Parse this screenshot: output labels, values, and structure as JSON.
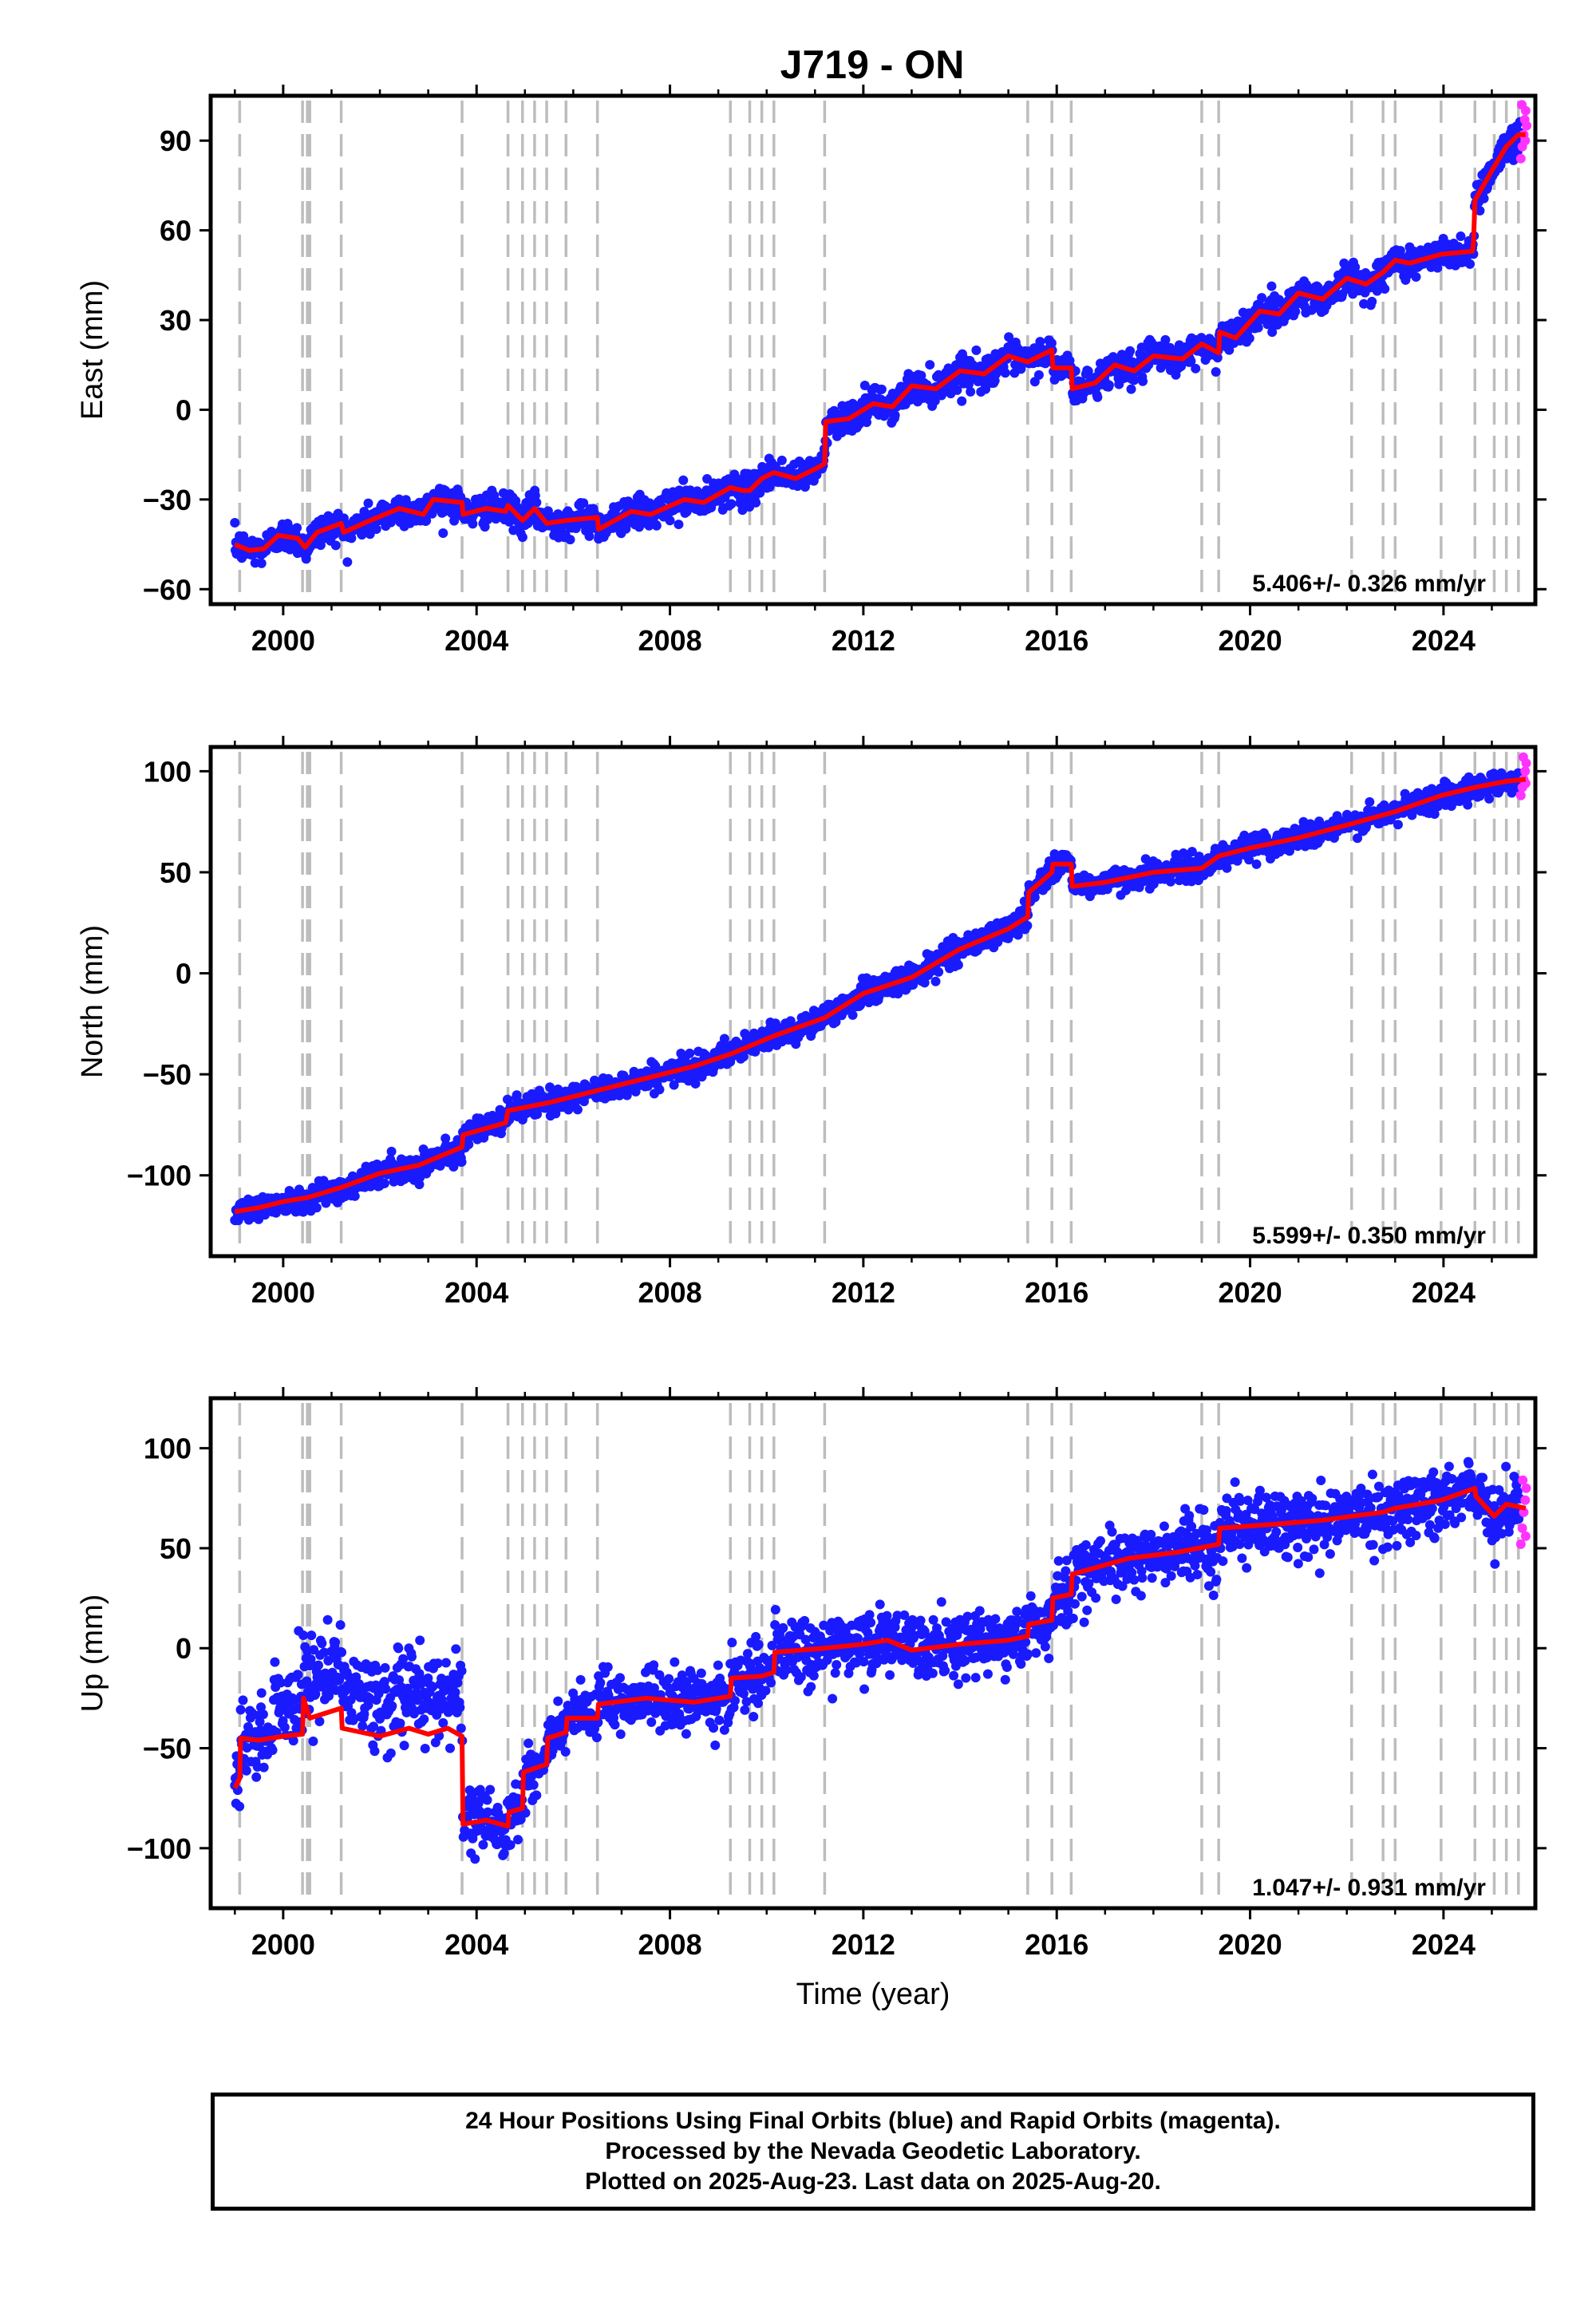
{
  "title": "J719 - ON",
  "caption": {
    "line1": "24 Hour Positions Using Final Orbits (blue) and Rapid Orbits (magenta).",
    "line2": "Processed by the Nevada Geodetic Laboratory.",
    "line3": "Plotted on 2025-Aug-23. Last data on 2025-Aug-20."
  },
  "colors": {
    "final_orbits": "#1a1aff",
    "rapid_orbits": "#ff33ff",
    "model": "#ff0000",
    "event_lines": "#bdbdbd"
  },
  "chart_data": [
    {
      "type": "scatter",
      "name": "east",
      "ylabel": "East (mm)",
      "xlabel": "",
      "xlim": [
        1998.5,
        2025.9
      ],
      "ylim": [
        -65,
        105
      ],
      "xticks": [
        2000,
        2004,
        2008,
        2012,
        2016,
        2020,
        2024
      ],
      "yticks": [
        -60,
        -30,
        0,
        30,
        60,
        90
      ],
      "rate": "5.406+/- 0.326 mm/yr",
      "event_lines": [
        1999.1,
        2000.4,
        2000.5,
        2000.55,
        2001.2,
        2003.7,
        2004.65,
        2004.95,
        2005.2,
        2005.45,
        2005.85,
        2006.5,
        2009.25,
        2009.65,
        2009.9,
        2010.15,
        2011.2,
        2015.4,
        2015.9,
        2016.3,
        2019.0,
        2019.35,
        2022.1,
        2022.75,
        2023.0,
        2023.95,
        2024.65,
        2025.05,
        2025.3,
        2025.55
      ],
      "model": [
        [
          1999.0,
          -45
        ],
        [
          1999.3,
          -47
        ],
        [
          1999.6,
          -46.5
        ],
        [
          1999.9,
          -42
        ],
        [
          2000.3,
          -43
        ],
        [
          2000.45,
          -46
        ],
        [
          2000.7,
          -41
        ],
        [
          2001.2,
          -38
        ],
        [
          2001.25,
          -41
        ],
        [
          2001.8,
          -37
        ],
        [
          2002.4,
          -33
        ],
        [
          2002.9,
          -35
        ],
        [
          2003.1,
          -30
        ],
        [
          2003.7,
          -31
        ],
        [
          2003.72,
          -35
        ],
        [
          2004.2,
          -33
        ],
        [
          2004.6,
          -34
        ],
        [
          2004.65,
          -32
        ],
        [
          2004.95,
          -37
        ],
        [
          2005.2,
          -33
        ],
        [
          2005.45,
          -38
        ],
        [
          2005.85,
          -37
        ],
        [
          2006.5,
          -36
        ],
        [
          2006.52,
          -40
        ],
        [
          2007.2,
          -34
        ],
        [
          2007.6,
          -35
        ],
        [
          2008.3,
          -30
        ],
        [
          2008.7,
          -31
        ],
        [
          2009.25,
          -26
        ],
        [
          2009.5,
          -27
        ],
        [
          2009.65,
          -27
        ],
        [
          2009.9,
          -23
        ],
        [
          2010.15,
          -21
        ],
        [
          2010.6,
          -23
        ],
        [
          2011.1,
          -19
        ],
        [
          2011.2,
          -18
        ],
        [
          2011.22,
          -4
        ],
        [
          2011.7,
          -3
        ],
        [
          2012.2,
          2
        ],
        [
          2012.6,
          1
        ],
        [
          2013.0,
          8
        ],
        [
          2013.5,
          7
        ],
        [
          2014.0,
          13
        ],
        [
          2014.5,
          12
        ],
        [
          2015.0,
          18
        ],
        [
          2015.4,
          16
        ],
        [
          2015.9,
          20
        ],
        [
          2015.92,
          14
        ],
        [
          2016.3,
          14
        ],
        [
          2016.32,
          7
        ],
        [
          2016.8,
          9
        ],
        [
          2017.2,
          15
        ],
        [
          2017.6,
          13
        ],
        [
          2018.0,
          18
        ],
        [
          2018.6,
          17
        ],
        [
          2019.0,
          22
        ],
        [
          2019.35,
          19
        ],
        [
          2019.37,
          26
        ],
        [
          2019.7,
          24
        ],
        [
          2020.2,
          33
        ],
        [
          2020.6,
          32
        ],
        [
          2021.0,
          39
        ],
        [
          2021.5,
          37
        ],
        [
          2022.0,
          44
        ],
        [
          2022.4,
          42
        ],
        [
          2022.75,
          46
        ],
        [
          2023.0,
          50
        ],
        [
          2023.3,
          49
        ],
        [
          2023.95,
          52
        ],
        [
          2024.6,
          53
        ],
        [
          2024.62,
          56
        ],
        [
          2024.65,
          70
        ],
        [
          2025.0,
          80
        ],
        [
          2025.3,
          88
        ],
        [
          2025.55,
          92
        ],
        [
          2025.7,
          92
        ]
      ],
      "scatter_sigma": 2.6,
      "rapid_points": [
        [
          2025.6,
          84
        ],
        [
          2025.63,
          88
        ],
        [
          2025.66,
          92
        ],
        [
          2025.68,
          97
        ],
        [
          2025.7,
          100
        ],
        [
          2025.72,
          95
        ],
        [
          2025.62,
          102
        ],
        [
          2025.69,
          90
        ]
      ]
    },
    {
      "type": "scatter",
      "name": "north",
      "ylabel": "North (mm)",
      "xlabel": "",
      "xlim": [
        1998.5,
        2025.9
      ],
      "ylim": [
        -140,
        112
      ],
      "xticks": [
        2000,
        2004,
        2008,
        2012,
        2016,
        2020,
        2024
      ],
      "yticks": [
        -100,
        -50,
        0,
        50,
        100
      ],
      "rate": "5.599+/- 0.350 mm/yr",
      "event_lines": [
        1999.1,
        2000.4,
        2000.5,
        2000.55,
        2001.2,
        2003.7,
        2004.65,
        2004.95,
        2005.2,
        2005.45,
        2005.85,
        2006.5,
        2009.25,
        2009.65,
        2009.9,
        2010.15,
        2011.2,
        2015.4,
        2015.9,
        2016.3,
        2019.0,
        2019.35,
        2022.1,
        2022.75,
        2023.0,
        2023.95,
        2024.65,
        2025.05,
        2025.3,
        2025.55
      ],
      "model": [
        [
          1999.0,
          -118
        ],
        [
          1999.5,
          -116
        ],
        [
          2000.0,
          -113
        ],
        [
          2000.5,
          -111
        ],
        [
          2001.2,
          -106
        ],
        [
          2002.0,
          -99
        ],
        [
          2002.8,
          -95
        ],
        [
          2003.7,
          -86
        ],
        [
          2003.72,
          -80
        ],
        [
          2004.6,
          -74
        ],
        [
          2004.65,
          -68
        ],
        [
          2005.5,
          -64
        ],
        [
          2006.5,
          -58
        ],
        [
          2007.5,
          -52
        ],
        [
          2008.5,
          -46
        ],
        [
          2009.25,
          -40
        ],
        [
          2010.15,
          -31
        ],
        [
          2011.2,
          -22
        ],
        [
          2012.0,
          -10
        ],
        [
          2013.0,
          -2
        ],
        [
          2014.0,
          12
        ],
        [
          2015.0,
          22
        ],
        [
          2015.4,
          28
        ],
        [
          2015.42,
          40
        ],
        [
          2015.9,
          50
        ],
        [
          2015.92,
          54
        ],
        [
          2016.3,
          54
        ],
        [
          2016.32,
          43
        ],
        [
          2017.0,
          45
        ],
        [
          2018.0,
          50
        ],
        [
          2019.0,
          52
        ],
        [
          2019.35,
          58
        ],
        [
          2020.0,
          62
        ],
        [
          2021.0,
          67
        ],
        [
          2022.1,
          74
        ],
        [
          2023.0,
          80
        ],
        [
          2023.95,
          88
        ],
        [
          2024.65,
          92
        ],
        [
          2025.3,
          95
        ],
        [
          2025.7,
          96
        ]
      ],
      "scatter_sigma": 3.0,
      "rapid_points": [
        [
          2025.6,
          88
        ],
        [
          2025.63,
          92
        ],
        [
          2025.66,
          96
        ],
        [
          2025.69,
          100
        ],
        [
          2025.71,
          104
        ],
        [
          2025.65,
          107
        ],
        [
          2025.7,
          94
        ]
      ]
    },
    {
      "type": "scatter",
      "name": "up",
      "ylabel": "Up (mm)",
      "xlabel": "Time (year)",
      "xlim": [
        1998.5,
        2025.9
      ],
      "ylim": [
        -130,
        125
      ],
      "xticks": [
        2000,
        2004,
        2008,
        2012,
        2016,
        2020,
        2024
      ],
      "yticks": [
        -100,
        -50,
        0,
        50,
        100
      ],
      "rate": "1.047+/- 0.931 mm/yr",
      "event_lines": [
        1999.1,
        2000.4,
        2000.5,
        2000.55,
        2001.2,
        2003.7,
        2004.65,
        2004.95,
        2005.2,
        2005.45,
        2005.85,
        2006.5,
        2009.25,
        2009.65,
        2009.9,
        2010.15,
        2011.2,
        2015.4,
        2015.9,
        2016.3,
        2019.0,
        2019.35,
        2022.1,
        2022.75,
        2023.0,
        2023.95,
        2024.65,
        2025.05,
        2025.3,
        2025.55
      ],
      "model": [
        [
          1999.0,
          -70
        ],
        [
          1999.1,
          -65
        ],
        [
          1999.12,
          -45
        ],
        [
          1999.5,
          -46
        ],
        [
          2000.0,
          -44
        ],
        [
          2000.4,
          -43
        ],
        [
          2000.42,
          -25
        ],
        [
          2000.55,
          -35
        ],
        [
          2001.2,
          -30
        ],
        [
          2001.22,
          -40
        ],
        [
          2002.0,
          -44
        ],
        [
          2002.6,
          -40
        ],
        [
          2003.0,
          -43
        ],
        [
          2003.4,
          -40
        ],
        [
          2003.7,
          -44
        ],
        [
          2003.72,
          -88
        ],
        [
          2004.2,
          -86
        ],
        [
          2004.65,
          -89
        ],
        [
          2004.67,
          -82
        ],
        [
          2004.95,
          -80
        ],
        [
          2004.97,
          -62
        ],
        [
          2005.45,
          -58
        ],
        [
          2005.47,
          -45
        ],
        [
          2005.85,
          -42
        ],
        [
          2005.87,
          -35
        ],
        [
          2006.5,
          -35
        ],
        [
          2006.52,
          -28
        ],
        [
          2007.5,
          -25
        ],
        [
          2008.5,
          -27
        ],
        [
          2009.25,
          -24
        ],
        [
          2009.27,
          -15
        ],
        [
          2009.9,
          -14
        ],
        [
          2010.15,
          -12
        ],
        [
          2010.17,
          -2
        ],
        [
          2011.2,
          0
        ],
        [
          2012.0,
          2
        ],
        [
          2012.5,
          4
        ],
        [
          2013.0,
          -1
        ],
        [
          2014.0,
          2
        ],
        [
          2015.0,
          4
        ],
        [
          2015.4,
          6
        ],
        [
          2015.42,
          12
        ],
        [
          2015.9,
          14
        ],
        [
          2015.92,
          25
        ],
        [
          2016.3,
          27
        ],
        [
          2016.32,
          37
        ],
        [
          2017.5,
          45
        ],
        [
          2018.5,
          48
        ],
        [
          2019.35,
          52
        ],
        [
          2019.37,
          60
        ],
        [
          2020.5,
          62
        ],
        [
          2021.5,
          64
        ],
        [
          2022.1,
          66
        ],
        [
          2022.75,
          68
        ],
        [
          2023.0,
          70
        ],
        [
          2023.95,
          74
        ],
        [
          2024.65,
          80
        ],
        [
          2024.67,
          76
        ],
        [
          2025.05,
          66
        ],
        [
          2025.3,
          72
        ],
        [
          2025.7,
          70
        ]
      ],
      "scatter_sigma": 7.5,
      "rapid_points": [
        [
          2025.6,
          52
        ],
        [
          2025.63,
          60
        ],
        [
          2025.66,
          68
        ],
        [
          2025.69,
          74
        ],
        [
          2025.71,
          80
        ],
        [
          2025.64,
          84
        ],
        [
          2025.7,
          56
        ]
      ]
    }
  ]
}
